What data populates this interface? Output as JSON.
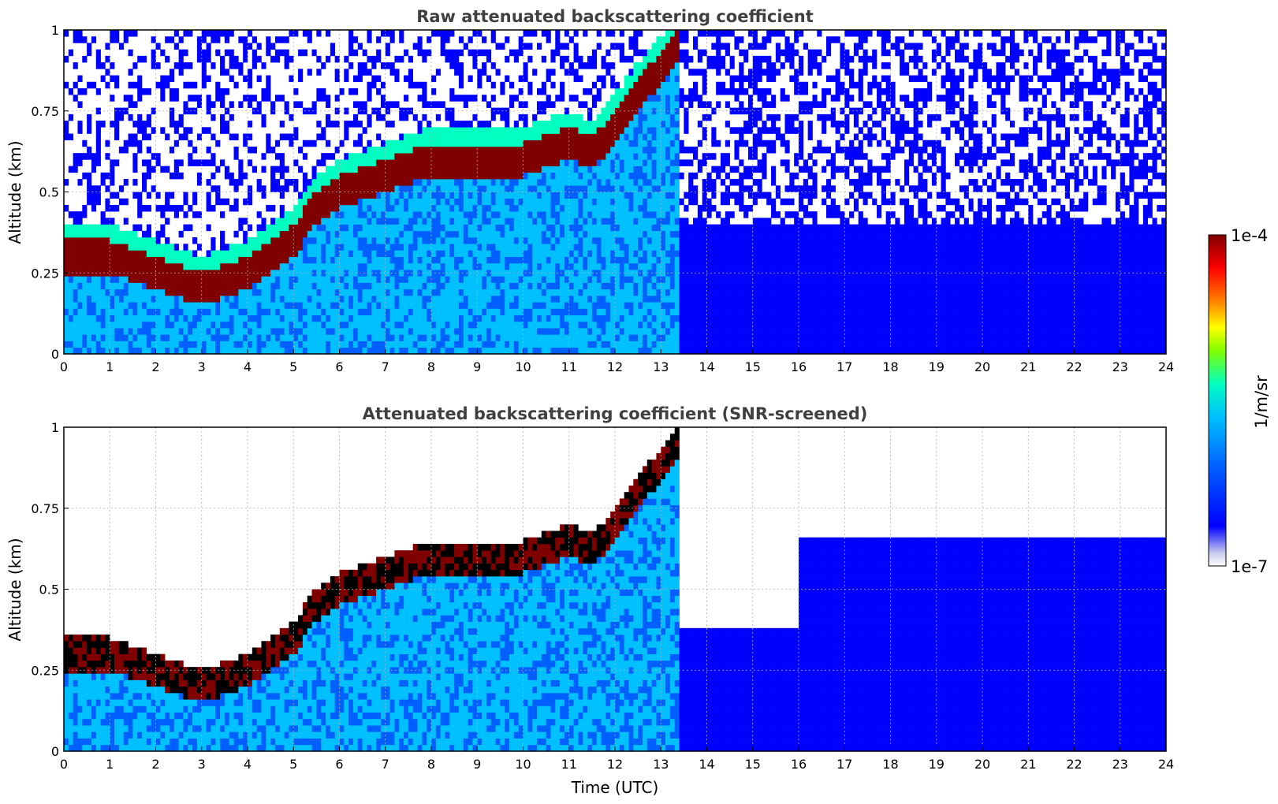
{
  "chart_data": [
    {
      "type": "heatmap",
      "title": "Raw attenuated backscattering coefficient",
      "xlabel": "",
      "ylabel": "Altitude (km)",
      "xlim": [
        0,
        24
      ],
      "ylim": [
        0,
        1
      ],
      "x_ticks": [
        "0",
        "1",
        "2",
        "3",
        "4",
        "5",
        "6",
        "7",
        "8",
        "9",
        "10",
        "11",
        "12",
        "13",
        "14",
        "15",
        "16",
        "17",
        "18",
        "19",
        "20",
        "21",
        "22",
        "23",
        "24"
      ],
      "y_ticks": [
        "0",
        "0.25",
        "0.5",
        "0.75",
        "1"
      ],
      "grid": true,
      "colorscale": "jet (log)",
      "layers": [
        {
          "feature": "aerosol layer top",
          "time": [
            0,
            1,
            2,
            3,
            4,
            4.5,
            5,
            5.5,
            6,
            7,
            8,
            9,
            10,
            11,
            11.5,
            12,
            12.5,
            13,
            13.4
          ],
          "altitude": [
            0.3,
            0.3,
            0.25,
            0.2,
            0.25,
            0.3,
            0.35,
            0.45,
            0.5,
            0.55,
            0.6,
            0.6,
            0.6,
            0.65,
            0.62,
            0.7,
            0.8,
            0.88,
            0.95
          ]
        }
      ]
    },
    {
      "type": "heatmap",
      "title": "Attenuated backscattering coefficient (SNR-screened)",
      "xlabel": "Time (UTC)",
      "ylabel": "Altitude (km)",
      "xlim": [
        0,
        24
      ],
      "ylim": [
        0,
        1
      ],
      "x_ticks": [
        "0",
        "1",
        "2",
        "3",
        "4",
        "5",
        "6",
        "7",
        "8",
        "9",
        "10",
        "11",
        "12",
        "13",
        "14",
        "15",
        "16",
        "17",
        "18",
        "19",
        "20",
        "21",
        "22",
        "23",
        "24"
      ],
      "y_ticks": [
        "0",
        "0.25",
        "0.5",
        "0.75",
        "1"
      ],
      "grid": true,
      "colorscale": "jet (log)"
    }
  ],
  "colorbar": {
    "min_label": "1e-7",
    "max_label": "1e-4",
    "unit_label": "1/m/sr",
    "colors": [
      "#ffffff",
      "#c8c8f0",
      "#0000ff",
      "#0060ff",
      "#00c0ff",
      "#00ffc0",
      "#80ff00",
      "#ffff00",
      "#ff8000",
      "#ff0000",
      "#800000"
    ]
  }
}
